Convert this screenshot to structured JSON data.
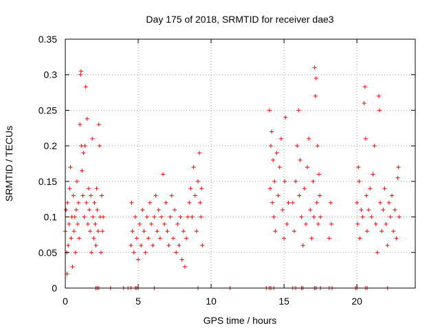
{
  "chart_data": {
    "type": "scatter",
    "title": "Day 175 of 2018, SRMTID for receiver dae3",
    "xlabel": "GPS time / hours",
    "ylabel": "SRMTID / TECUs",
    "xlim": [
      0,
      24
    ],
    "ylim": [
      0,
      0.35
    ],
    "grid": true,
    "marker": "+",
    "color": "#ff0000",
    "xticks": [
      0,
      5,
      10,
      15,
      20
    ],
    "xtick_labels": [
      "0",
      "5",
      "10",
      "15",
      "20"
    ],
    "yticks": [
      0,
      0.05,
      0.1,
      0.15,
      0.2,
      0.25,
      0.3,
      0.35
    ],
    "ytick_labels": [
      "0",
      "0.05",
      "0.1",
      "0.15",
      "0.2",
      "0.25",
      "0.3",
      "0.35"
    ],
    "series": [
      {
        "name": "SRMTID",
        "points": [
          [
            0.0,
            0.08
          ],
          [
            0.05,
            0.11
          ],
          [
            0.1,
            0.05
          ],
          [
            0.12,
            0.02
          ],
          [
            0.15,
            0.12
          ],
          [
            0.2,
            0.06
          ],
          [
            0.25,
            0.09
          ],
          [
            0.3,
            0.14
          ],
          [
            0.35,
            0.17
          ],
          [
            0.4,
            0.07
          ],
          [
            0.45,
            0.1
          ],
          [
            0.5,
            0.03
          ],
          [
            0.55,
            0.13
          ],
          [
            0.6,
            0.08
          ],
          [
            0.65,
            0.1
          ],
          [
            0.7,
            0.05
          ],
          [
            0.75,
            0.11
          ],
          [
            0.8,
            0.15
          ],
          [
            0.85,
            0.09
          ],
          [
            0.9,
            0.12
          ],
          [
            0.95,
            0.07
          ],
          [
            1.0,
            0.23
          ],
          [
            1.05,
            0.3
          ],
          [
            1.08,
            0.305
          ],
          [
            1.1,
            0.2
          ],
          [
            1.15,
            0.165
          ],
          [
            1.2,
            0.13
          ],
          [
            1.25,
            0.19
          ],
          [
            1.3,
            0.1
          ],
          [
            1.35,
            0.2
          ],
          [
            1.4,
            0.283
          ],
          [
            1.45,
            0.12
          ],
          [
            1.5,
            0.238
          ],
          [
            1.55,
            0.09
          ],
          [
            1.6,
            0.14
          ],
          [
            1.65,
            0.11
          ],
          [
            1.7,
            0.08
          ],
          [
            1.75,
            0.13
          ],
          [
            1.8,
            0.05
          ],
          [
            1.85,
            0.21
          ],
          [
            1.9,
            0.1
          ],
          [
            1.95,
            0.07
          ],
          [
            2.0,
            0.12
          ],
          [
            2.05,
            0.09
          ],
          [
            2.1,
            0.06
          ],
          [
            2.15,
            0.14
          ],
          [
            2.2,
            0.11
          ],
          [
            2.25,
            0.08
          ],
          [
            2.3,
            0.23
          ],
          [
            2.35,
            0.2
          ],
          [
            2.4,
            0.1
          ],
          [
            2.45,
            0.05
          ],
          [
            2.5,
            0.13
          ],
          [
            2.55,
            0.08
          ],
          [
            2.6,
            0.1
          ],
          [
            4.5,
            0.06
          ],
          [
            4.55,
            0.12
          ],
          [
            4.6,
            0.08
          ],
          [
            4.7,
            0.05
          ],
          [
            4.8,
            0.1
          ],
          [
            4.9,
            0.07
          ],
          [
            5.0,
            0.04
          ],
          [
            5.1,
            0.09
          ],
          [
            5.2,
            0.06
          ],
          [
            5.3,
            0.11
          ],
          [
            5.4,
            0.08
          ],
          [
            5.5,
            0.05
          ],
          [
            5.6,
            0.1
          ],
          [
            5.7,
            0.07
          ],
          [
            5.8,
            0.12
          ],
          [
            5.9,
            0.09
          ],
          [
            6.0,
            0.06
          ],
          [
            6.1,
            0.1
          ],
          [
            6.2,
            0.13
          ],
          [
            6.3,
            0.08
          ],
          [
            6.4,
            0.11
          ],
          [
            6.5,
            0.07
          ],
          [
            6.6,
            0.1
          ],
          [
            6.7,
            0.16
          ],
          [
            6.8,
            0.09
          ],
          [
            6.9,
            0.12
          ],
          [
            7.0,
            0.08
          ],
          [
            7.1,
            0.06
          ],
          [
            7.2,
            0.1
          ],
          [
            7.3,
            0.13
          ],
          [
            7.4,
            0.07
          ],
          [
            7.5,
            0.11
          ],
          [
            7.6,
            0.05
          ],
          [
            7.7,
            0.09
          ],
          [
            7.8,
            0.06
          ],
          [
            7.9,
            0.1
          ],
          [
            8.0,
            0.04
          ],
          [
            8.1,
            0.08
          ],
          [
            8.2,
            0.03
          ],
          [
            8.3,
            0.07
          ],
          [
            8.4,
            0.1
          ],
          [
            8.5,
            0.12
          ],
          [
            8.6,
            0.14
          ],
          [
            8.7,
            0.1
          ],
          [
            8.8,
            0.17
          ],
          [
            8.9,
            0.13
          ],
          [
            9.0,
            0.08
          ],
          [
            9.1,
            0.15
          ],
          [
            9.2,
            0.19
          ],
          [
            9.25,
            0.12
          ],
          [
            9.3,
            0.1
          ],
          [
            9.35,
            0.14
          ],
          [
            9.4,
            0.06
          ],
          [
            14.0,
            0.25
          ],
          [
            14.05,
            0.14
          ],
          [
            14.1,
            0.2
          ],
          [
            14.15,
            0.22
          ],
          [
            14.2,
            0.12
          ],
          [
            14.25,
            0.18
          ],
          [
            14.3,
            0.1
          ],
          [
            14.35,
            0.15
          ],
          [
            14.4,
            0.08
          ],
          [
            14.5,
            0.19
          ],
          [
            14.6,
            0.13
          ],
          [
            14.7,
            0.17
          ],
          [
            14.8,
            0.21
          ],
          [
            14.9,
            0.11
          ],
          [
            15.0,
            0.07
          ],
          [
            15.05,
            0.15
          ],
          [
            15.1,
            0.24
          ],
          [
            15.2,
            0.09
          ],
          [
            15.3,
            0.12
          ],
          [
            15.6,
            0.12
          ],
          [
            15.7,
            0.08
          ],
          [
            15.8,
            0.15
          ],
          [
            15.9,
            0.2
          ],
          [
            16.0,
            0.25
          ],
          [
            16.05,
            0.13
          ],
          [
            16.1,
            0.18
          ],
          [
            16.2,
            0.1
          ],
          [
            16.3,
            0.06
          ],
          [
            16.4,
            0.14
          ],
          [
            16.5,
            0.09
          ],
          [
            16.6,
            0.17
          ],
          [
            16.7,
            0.21
          ],
          [
            16.8,
            0.11
          ],
          [
            16.9,
            0.07
          ],
          [
            17.0,
            0.15
          ],
          [
            17.05,
            0.1
          ],
          [
            17.1,
            0.31
          ],
          [
            17.15,
            0.27
          ],
          [
            17.2,
            0.295
          ],
          [
            17.25,
            0.12
          ],
          [
            17.3,
            0.2
          ],
          [
            17.35,
            0.09
          ],
          [
            17.4,
            0.16
          ],
          [
            17.45,
            0.13
          ],
          [
            17.5,
            0.1
          ],
          [
            18.1,
            0.07
          ],
          [
            18.2,
            0.12
          ],
          [
            18.25,
            0.09
          ],
          [
            20.0,
            0.12
          ],
          [
            20.05,
            0.09
          ],
          [
            20.1,
            0.17
          ],
          [
            20.15,
            0.15
          ],
          [
            20.2,
            0.07
          ],
          [
            20.3,
            0.11
          ],
          [
            20.4,
            0.1
          ],
          [
            20.5,
            0.26
          ],
          [
            20.55,
            0.283
          ],
          [
            20.6,
            0.21
          ],
          [
            20.65,
            0.13
          ],
          [
            20.7,
            0.08
          ],
          [
            20.8,
            0.11
          ],
          [
            20.9,
            0.14
          ],
          [
            21.0,
            0.1
          ],
          [
            21.1,
            0.16
          ],
          [
            21.2,
            0.2
          ],
          [
            21.3,
            0.09
          ],
          [
            21.4,
            0.05
          ],
          [
            21.5,
            0.27
          ],
          [
            21.55,
            0.25
          ],
          [
            21.6,
            0.12
          ],
          [
            21.7,
            0.08
          ],
          [
            21.8,
            0.11
          ],
          [
            21.9,
            0.14
          ],
          [
            22.0,
            0.09
          ],
          [
            22.1,
            0.06
          ],
          [
            22.2,
            0.12
          ],
          [
            22.3,
            0.1
          ],
          [
            22.4,
            0.13
          ],
          [
            22.5,
            0.08
          ],
          [
            22.6,
            0.11
          ],
          [
            22.7,
            0.07
          ],
          [
            22.8,
            0.155
          ],
          [
            22.85,
            0.17
          ],
          [
            22.9,
            0.1
          ]
        ]
      }
    ],
    "zero_markers_x": [
      2.1,
      2.2,
      2.3,
      3.1,
      4.0,
      4.3,
      4.5,
      4.8,
      4.9,
      5.0,
      6.1,
      9.1,
      11.3,
      13.8,
      14.0,
      14.1,
      14.3,
      15.6,
      15.8,
      16.2,
      16.3,
      17.1,
      17.2,
      17.5,
      18.1,
      18.3,
      19.9,
      20.0,
      20.6,
      20.7,
      22.1
    ]
  }
}
